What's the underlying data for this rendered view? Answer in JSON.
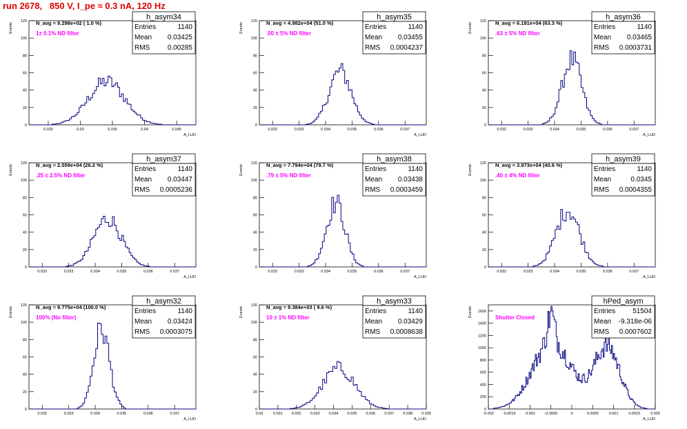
{
  "run_title": "run 2678,   850 V, I_pe ≈ 0.3 nA, 120 Hz",
  "colors": {
    "histogram": "#000080",
    "annotation": "#ff00ff",
    "title": "#e00000",
    "axis": "#000000"
  },
  "stats_labels": {
    "entries": "Entries",
    "mean": "Mean",
    "rms": "RMS"
  },
  "chart_data": [
    {
      "type": "bar",
      "name": "h_asym34",
      "stats": {
        "entries": "1140",
        "mean": "0.03425",
        "rms": "0.00285"
      },
      "navg": "N_avg = 9.298e+02 ( 1.0 %)",
      "note": "1± 0.1% ND filter",
      "xlabel": "A_LUD",
      "ylabel": "Events",
      "xlim": [
        0.022,
        0.048
      ],
      "ylim": [
        0,
        120
      ],
      "xticks": [
        0.025,
        0.03,
        0.035,
        0.04,
        0.045
      ],
      "xticklabels": [
        "0.025",
        "0.03",
        "0.035",
        "0.04",
        "0.045"
      ],
      "yticks": [
        0,
        20,
        40,
        60,
        80,
        100,
        120
      ],
      "peaks": [
        {
          "mu": 0.0341,
          "sigma": 0.00285,
          "height": 50
        }
      ],
      "bin_width": 0.0003
    },
    {
      "type": "bar",
      "name": "h_asym35",
      "stats": {
        "entries": "1140",
        "mean": "0.03455",
        "rms": "0.0004237"
      },
      "navg": "N_avg = 4.982e+04 (51.0 %)",
      "note": ".50 ± 5% ND filter",
      "xlabel": "A_LUD",
      "ylabel": "Events",
      "xlim": [
        0.0315,
        0.0378
      ],
      "ylim": [
        0,
        120
      ],
      "xticks": [
        0.032,
        0.033,
        0.034,
        0.035,
        0.036,
        0.037
      ],
      "xticklabels": [
        "0.032",
        "0.033",
        "0.034",
        "0.035",
        "0.036",
        "0.037"
      ],
      "yticks": [
        0,
        20,
        40,
        60,
        80,
        100,
        120
      ],
      "peaks": [
        {
          "mu": 0.03455,
          "sigma": 0.00042,
          "height": 62
        }
      ],
      "bin_width": 7e-05
    },
    {
      "type": "bar",
      "name": "h_asym36",
      "stats": {
        "entries": "1140",
        "mean": "0.03465",
        "rms": "0.0003731"
      },
      "navg": "N_avg = 6.191e+04 (63.3 %)",
      "note": ".63 ± 5% ND filter",
      "xlabel": "A_LUD",
      "ylabel": "Events",
      "xlim": [
        0.0315,
        0.0378
      ],
      "ylim": [
        0,
        120
      ],
      "xticks": [
        0.032,
        0.033,
        0.034,
        0.035,
        0.036,
        0.037
      ],
      "xticklabels": [
        "0.032",
        "0.033",
        "0.034",
        "0.035",
        "0.036",
        "0.037"
      ],
      "yticks": [
        0,
        20,
        40,
        60,
        80,
        100,
        120
      ],
      "peaks": [
        {
          "mu": 0.03465,
          "sigma": 0.00037,
          "height": 75
        }
      ],
      "bin_width": 7e-05
    },
    {
      "type": "bar",
      "name": "h_asym37",
      "stats": {
        "entries": "1140",
        "mean": "0.03447",
        "rms": "0.0005236"
      },
      "navg": "N_avg = 2.559e+04 (26.2 %)",
      "note": ".25 ± 2.5% ND filter",
      "xlabel": "A_LUD",
      "ylabel": "Events",
      "xlim": [
        0.0315,
        0.0378
      ],
      "ylim": [
        0,
        120
      ],
      "xticks": [
        0.032,
        0.033,
        0.034,
        0.035,
        0.036,
        0.037
      ],
      "xticklabels": [
        "0.032",
        "0.033",
        "0.034",
        "0.035",
        "0.036",
        "0.037"
      ],
      "yticks": [
        0,
        20,
        40,
        60,
        80,
        100,
        120
      ],
      "peaks": [
        {
          "mu": 0.03447,
          "sigma": 0.00052,
          "height": 56
        }
      ],
      "bin_width": 7e-05
    },
    {
      "type": "bar",
      "name": "h_asym38",
      "stats": {
        "entries": "1140",
        "mean": "0.03438",
        "rms": "0.0003459"
      },
      "navg": "N_avg = 7.794e+04 (79.7 %)",
      "note": ".79 ± 5% ND filter",
      "xlabel": "A_LUD",
      "ylabel": "Events",
      "xlim": [
        0.0315,
        0.0378
      ],
      "ylim": [
        0,
        120
      ],
      "xticks": [
        0.032,
        0.033,
        0.034,
        0.035,
        0.036,
        0.037
      ],
      "xticklabels": [
        "0.032",
        "0.033",
        "0.034",
        "0.035",
        "0.036",
        "0.037"
      ],
      "yticks": [
        0,
        20,
        40,
        60,
        80,
        100,
        120
      ],
      "peaks": [
        {
          "mu": 0.03438,
          "sigma": 0.00035,
          "height": 74
        }
      ],
      "bin_width": 7e-05
    },
    {
      "type": "bar",
      "name": "h_asym39",
      "stats": {
        "entries": "1140",
        "mean": "0.0345",
        "rms": "0.0004355"
      },
      "navg": "N_avg = 3.973e+04 (40.6 %)",
      "note": ".40 ± 4% ND filter",
      "xlabel": "A_LUD",
      "ylabel": "Events",
      "xlim": [
        0.0315,
        0.0378
      ],
      "ylim": [
        0,
        120
      ],
      "xticks": [
        0.032,
        0.033,
        0.034,
        0.035,
        0.036,
        0.037
      ],
      "xticklabels": [
        "0.032",
        "0.033",
        "0.034",
        "0.035",
        "0.036",
        "0.037"
      ],
      "yticks": [
        0,
        20,
        40,
        60,
        80,
        100,
        120
      ],
      "peaks": [
        {
          "mu": 0.0345,
          "sigma": 0.00044,
          "height": 66
        }
      ],
      "bin_width": 7e-05
    },
    {
      "type": "bar",
      "name": "h_asym32",
      "stats": {
        "entries": "1140",
        "mean": "0.03424",
        "rms": "0.0003075"
      },
      "navg": "N_avg = 9.775e+04 (100.0 %)",
      "note": "100% (No filter)",
      "xlabel": "A_LUD",
      "ylabel": "Events",
      "xlim": [
        0.0315,
        0.0378
      ],
      "ylim": [
        0,
        120
      ],
      "xticks": [
        0.032,
        0.033,
        0.034,
        0.035,
        0.036,
        0.037
      ],
      "xticklabels": [
        "0.032",
        "0.033",
        "0.034",
        "0.035",
        "0.036",
        "0.037"
      ],
      "yticks": [
        0,
        20,
        40,
        60,
        80,
        100,
        120
      ],
      "peaks": [
        {
          "mu": 0.03424,
          "sigma": 0.0003,
          "height": 92
        }
      ],
      "bin_width": 7e-05
    },
    {
      "type": "bar",
      "name": "h_asym33",
      "stats": {
        "entries": "1140",
        "mean": "0.03429",
        "rms": "0.0008638"
      },
      "navg": "N_avg = 9.384e+03 ( 9.6 %)",
      "note": "10 ± 1% ND filter",
      "xlabel": "A_LUD",
      "ylabel": "Events",
      "xlim": [
        0.03,
        0.039
      ],
      "ylim": [
        0,
        120
      ],
      "xticks": [
        0.03,
        0.031,
        0.032,
        0.033,
        0.034,
        0.035,
        0.036,
        0.037,
        0.038,
        0.039
      ],
      "xticklabels": [
        "0.03",
        "0.031",
        "0.032",
        "0.033",
        "0.034",
        "0.035",
        "0.036",
        "0.037",
        "0.038",
        "0.039"
      ],
      "yticks": [
        0,
        20,
        40,
        60,
        80,
        100,
        120
      ],
      "peaks": [
        {
          "mu": 0.03429,
          "sigma": 0.00086,
          "height": 47
        }
      ],
      "bin_width": 0.00011
    },
    {
      "type": "bar",
      "name": "hPed_asym",
      "stats": {
        "entries": "51504",
        "mean": "-9.318e-06",
        "rms": "0.0007602"
      },
      "navg": "",
      "note": "Shutter Closed",
      "xlabel": "A_LUD",
      "ylabel": "Events",
      "xlim": [
        -0.002,
        0.002
      ],
      "ylim": [
        0,
        1700
      ],
      "xticks": [
        -0.002,
        -0.0015,
        -0.001,
        -0.0005,
        0,
        0.0005,
        0.001,
        0.0015,
        0.002
      ],
      "xticklabels": [
        "-0.002",
        "-0.0015",
        "-0.001",
        "-0.0005",
        "0",
        "0.0005",
        "0.001",
        "0.0015",
        "0.002"
      ],
      "yticks": [
        0,
        200,
        400,
        600,
        800,
        1000,
        1200,
        1400,
        1600
      ],
      "peaks": [
        {
          "mu": -0.0005,
          "sigma": 0.00045,
          "height": 1020
        },
        {
          "mu": -0.0005,
          "sigma": 8e-05,
          "height": 450
        },
        {
          "mu": 0.00085,
          "sigma": 0.0003,
          "height": 980
        },
        {
          "mu": 0.0,
          "sigma": 0.0006,
          "height": 120
        }
      ],
      "bin_width": 2.5e-05
    }
  ]
}
